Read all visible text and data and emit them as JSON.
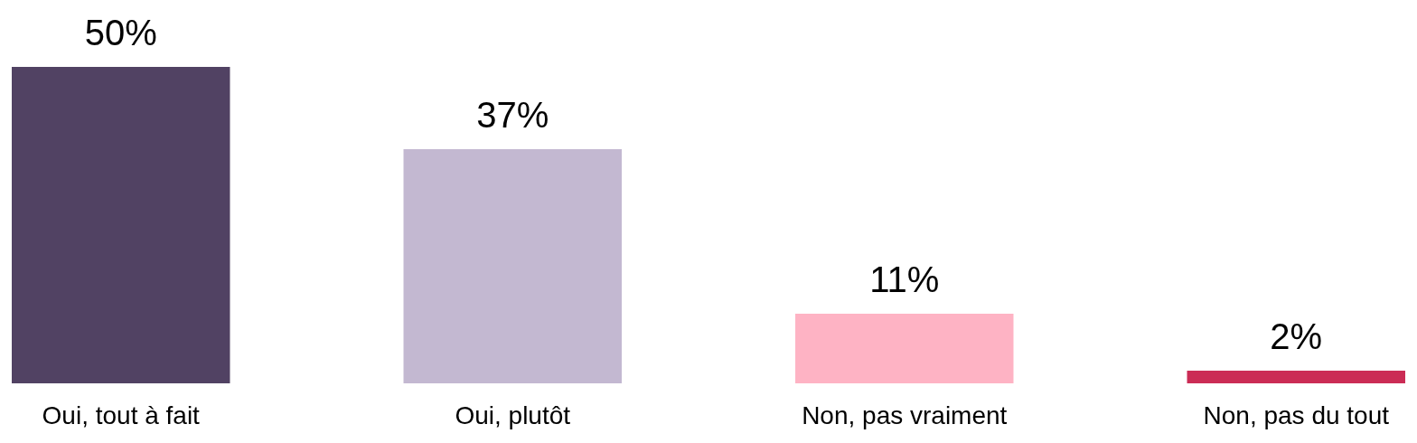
{
  "chart_data": {
    "type": "bar",
    "categories": [
      "Oui, tout à fait",
      "Oui, plutôt",
      "Non, pas vraiment",
      "Non, pas du tout"
    ],
    "values": [
      50,
      37,
      11,
      2
    ],
    "colors": [
      "#514263",
      "#c3b8d1",
      "#feb3c4",
      "#cb2c55"
    ],
    "value_labels": [
      "50%",
      "37%",
      "11%",
      "2%"
    ]
  }
}
